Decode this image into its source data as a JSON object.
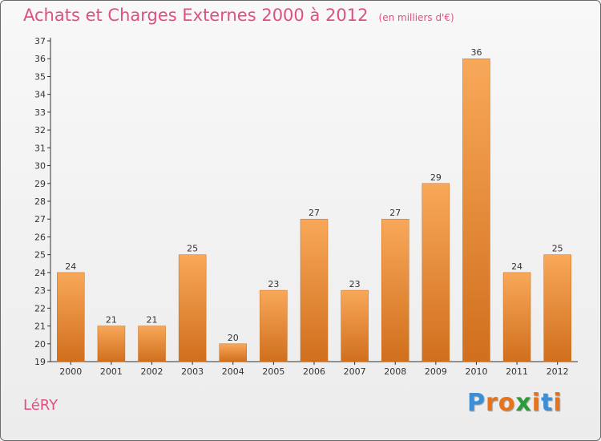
{
  "title": "Achats et Charges Externes 2000 à 2012",
  "subtitle": "(en milliers d'€)",
  "commune": "LéRY",
  "logo": {
    "letters": [
      "P",
      "r",
      "o",
      "x",
      "i",
      "t",
      "i"
    ],
    "colors": [
      "#3a8fd6",
      "#e8731c",
      "#e8731c",
      "#2a9d3a",
      "#e8731c",
      "#3a8fd6",
      "#e8731c"
    ]
  },
  "colors": {
    "bar_light": "#f6a352",
    "bar_dark": "#d4731f",
    "title": "#e0507f"
  },
  "chart_data": {
    "type": "bar",
    "categories": [
      "2000",
      "2001",
      "2002",
      "2003",
      "2004",
      "2005",
      "2006",
      "2007",
      "2008",
      "2009",
      "2010",
      "2011",
      "2012"
    ],
    "values": [
      24,
      21,
      21,
      25,
      20,
      23,
      27,
      23,
      27,
      29,
      36,
      24,
      25
    ],
    "title": "Achats et Charges Externes 2000 à 2012",
    "xlabel": "",
    "ylabel": "",
    "ylim": [
      19,
      37
    ],
    "yticks": [
      19,
      20,
      21,
      22,
      23,
      24,
      25,
      26,
      27,
      28,
      29,
      30,
      31,
      32,
      33,
      34,
      35,
      36,
      37
    ],
    "grid": false,
    "legend": "none"
  }
}
